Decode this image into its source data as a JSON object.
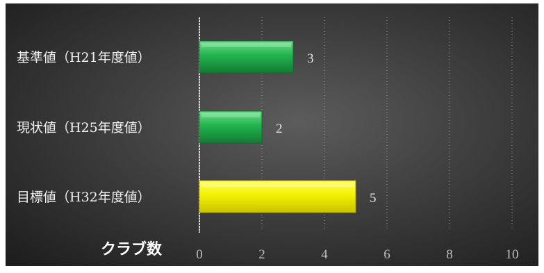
{
  "chart_data": {
    "type": "bar",
    "orientation": "horizontal",
    "categories": [
      "基準値（H21年度値）",
      "現状値（H25年度値）",
      "目標値（H32年度値）"
    ],
    "values": [
      3,
      2,
      5
    ],
    "bar_colors": [
      "#1fae4a",
      "#1fae4a",
      "#f2f000"
    ],
    "xlim": [
      0,
      10
    ],
    "x_ticks": [
      "0",
      "2",
      "4",
      "6",
      "8",
      "10"
    ],
    "unit_label": "クラブ数",
    "grid": "vertical dashed",
    "data_labels": [
      "3",
      "2",
      "5"
    ],
    "background": "#3c3c3c"
  }
}
